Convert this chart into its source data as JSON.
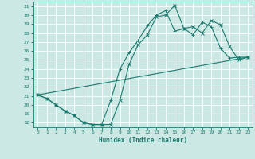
{
  "xlabel": "Humidex (Indice chaleur)",
  "bg_color": "#cce8e4",
  "line_color": "#1a7a6e",
  "grid_color": "#ffffff",
  "xlim": [
    -0.5,
    23.5
  ],
  "ylim": [
    17.5,
    31.5
  ],
  "xticks": [
    0,
    1,
    2,
    3,
    4,
    5,
    6,
    7,
    8,
    9,
    10,
    11,
    12,
    13,
    14,
    15,
    16,
    17,
    18,
    19,
    20,
    21,
    22,
    23
  ],
  "yticks": [
    18,
    19,
    20,
    21,
    22,
    23,
    24,
    25,
    26,
    27,
    28,
    29,
    30,
    31
  ],
  "line1_x": [
    0,
    1,
    2,
    3,
    4,
    5,
    6,
    7,
    8,
    9,
    10,
    11,
    12,
    13,
    14,
    15,
    16,
    17,
    18,
    19,
    20,
    21,
    22,
    23
  ],
  "line1_y": [
    21.1,
    20.7,
    20.0,
    19.3,
    18.8,
    18.0,
    17.8,
    17.8,
    17.8,
    20.5,
    24.5,
    26.7,
    27.8,
    29.8,
    30.0,
    31.1,
    28.5,
    28.7,
    28.0,
    29.4,
    28.9,
    26.5,
    25.0,
    25.3
  ],
  "line2_x": [
    0,
    1,
    2,
    3,
    4,
    5,
    6,
    7,
    8,
    9,
    10,
    11,
    12,
    13,
    14,
    15,
    16,
    17,
    18,
    19,
    20,
    21,
    22,
    23
  ],
  "line2_y": [
    21.1,
    20.7,
    20.0,
    19.3,
    18.8,
    18.0,
    17.8,
    17.8,
    20.5,
    24.0,
    25.8,
    27.2,
    28.8,
    30.0,
    30.5,
    28.2,
    28.5,
    27.8,
    29.2,
    28.7,
    26.3,
    25.2,
    25.3,
    25.3
  ],
  "line3_x": [
    0,
    23
  ],
  "line3_y": [
    21.1,
    25.3
  ]
}
